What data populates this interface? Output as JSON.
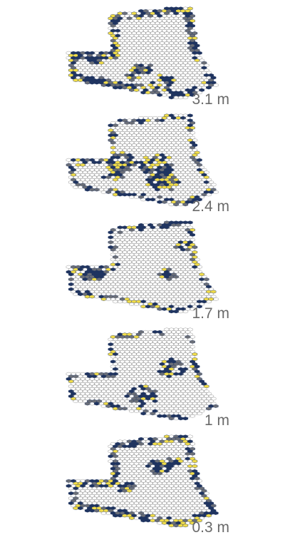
{
  "chart_data": {
    "type": "heatmap",
    "title": "",
    "layers": [
      {
        "label": "3.1 m",
        "occupancy_fraction": 0.42
      },
      {
        "label": "2.4 m",
        "occupancy_fraction": 0.25
      },
      {
        "label": "1.7 m",
        "occupancy_fraction": 0.22
      },
      {
        "label": "1 m",
        "occupancy_fraction": 0.19
      },
      {
        "label": "0.3 m",
        "occupancy_fraction": 0.38
      }
    ],
    "colors": {
      "empty_outline": "#8a8a8a",
      "low": "#1f3460",
      "mid": "#6b6f78",
      "high": "#f0dc4a"
    },
    "grid": true,
    "legend": "none"
  }
}
